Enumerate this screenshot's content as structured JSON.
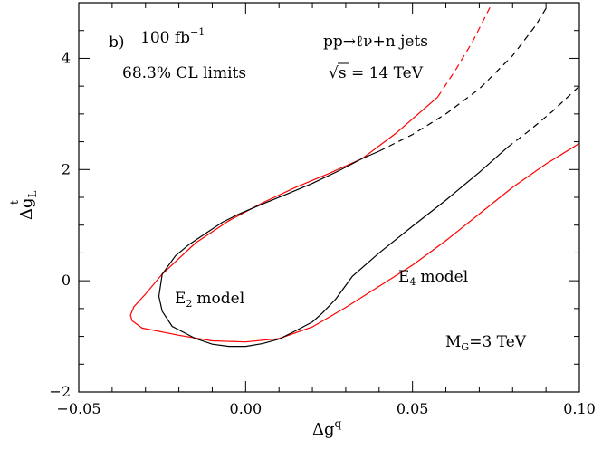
{
  "chart_data": {
    "type": "line",
    "panel_label": "b)",
    "xlabel": "Δg",
    "xlabel_sup": "q",
    "ylabel": "Δg",
    "ylabel_sub": "L",
    "ylabel_sup": "t",
    "xlim": [
      -0.05,
      0.1
    ],
    "ylim": [
      -2,
      5
    ],
    "xticks": [
      {
        "value": -0.05,
        "label": "−0.05"
      },
      {
        "value": 0.0,
        "label": "0.00"
      },
      {
        "value": 0.05,
        "label": "0.05"
      },
      {
        "value": 0.1,
        "label": "0.10"
      }
    ],
    "yticks": [
      {
        "value": -2,
        "label": "−2"
      },
      {
        "value": 0,
        "label": "0"
      },
      {
        "value": 2,
        "label": "2"
      },
      {
        "value": 4,
        "label": "4"
      }
    ],
    "annotations": {
      "luminosity": "100 fb",
      "luminosity_exp": "−1",
      "cl": "68.3% CL limits",
      "process": "pp→ℓν+n jets",
      "energy_sqrt": "√",
      "energy": "s = 14 TeV",
      "mass_base": "M",
      "mass_sub": "G",
      "mass_value": "=3 TeV"
    },
    "series": [
      {
        "name": "E4 model",
        "label_base": "E",
        "label_sub": "4",
        "label_text": "model",
        "color": "#ff0000",
        "solid": [
          [
            0.0575,
            3.3
          ],
          [
            0.045,
            2.65
          ],
          [
            0.035,
            2.2
          ],
          [
            0.025,
            1.93
          ],
          [
            0.015,
            1.68
          ],
          [
            0.005,
            1.4
          ],
          [
            -0.005,
            1.08
          ],
          [
            -0.015,
            0.68
          ],
          [
            -0.025,
            0.12
          ],
          [
            -0.03,
            -0.24
          ],
          [
            -0.0335,
            -0.47
          ],
          [
            -0.0345,
            -0.62
          ],
          [
            -0.034,
            -0.72
          ],
          [
            -0.031,
            -0.85
          ],
          [
            -0.02,
            -0.98
          ],
          [
            -0.01,
            -1.08
          ],
          [
            0.0,
            -1.1
          ],
          [
            0.01,
            -1.04
          ],
          [
            0.02,
            -0.83
          ],
          [
            0.03,
            -0.48
          ],
          [
            0.04,
            -0.1
          ],
          [
            0.05,
            0.28
          ],
          [
            0.06,
            0.72
          ],
          [
            0.07,
            1.2
          ],
          [
            0.08,
            1.68
          ],
          [
            0.09,
            2.1
          ],
          [
            0.1,
            2.47
          ]
        ],
        "dashed": [
          [
            0.0575,
            3.3
          ],
          [
            0.063,
            3.8
          ],
          [
            0.068,
            4.3
          ],
          [
            0.0735,
            4.95
          ]
        ]
      },
      {
        "name": "E2 model",
        "label_base": "E",
        "label_sub": "2",
        "label_text": "model",
        "color": "#000000",
        "solid": [
          [
            0.0785,
            2.4
          ],
          [
            0.07,
            1.95
          ],
          [
            0.06,
            1.45
          ],
          [
            0.05,
            0.98
          ],
          [
            0.04,
            0.5
          ],
          [
            0.032,
            0.08
          ],
          [
            0.027,
            -0.33
          ],
          [
            0.023,
            -0.58
          ],
          [
            0.02,
            -0.74
          ],
          [
            0.015,
            -0.9
          ],
          [
            0.01,
            -1.05
          ],
          [
            0.005,
            -1.13
          ],
          [
            0.0,
            -1.18
          ],
          [
            -0.005,
            -1.18
          ],
          [
            -0.01,
            -1.14
          ],
          [
            -0.015,
            -1.04
          ],
          [
            -0.022,
            -0.82
          ],
          [
            -0.025,
            -0.55
          ],
          [
            -0.026,
            -0.28
          ],
          [
            -0.025,
            0.12
          ],
          [
            -0.021,
            0.45
          ],
          [
            -0.017,
            0.65
          ],
          [
            -0.012,
            0.85
          ],
          [
            -0.007,
            1.05
          ],
          [
            -0.002,
            1.2
          ],
          [
            0.005,
            1.38
          ],
          [
            0.012,
            1.55
          ],
          [
            0.02,
            1.75
          ],
          [
            0.028,
            1.98
          ],
          [
            0.035,
            2.2
          ],
          [
            0.04,
            2.33
          ]
        ],
        "dashed_upper": [
          [
            0.04,
            2.33
          ],
          [
            0.05,
            2.63
          ],
          [
            0.06,
            3.0
          ],
          [
            0.07,
            3.45
          ],
          [
            0.08,
            4.05
          ],
          [
            0.087,
            4.6
          ],
          [
            0.0905,
            4.95
          ]
        ],
        "dashed_lower": [
          [
            0.0785,
            2.4
          ],
          [
            0.085,
            2.7
          ],
          [
            0.092,
            3.05
          ],
          [
            0.1,
            3.5
          ]
        ]
      }
    ]
  }
}
